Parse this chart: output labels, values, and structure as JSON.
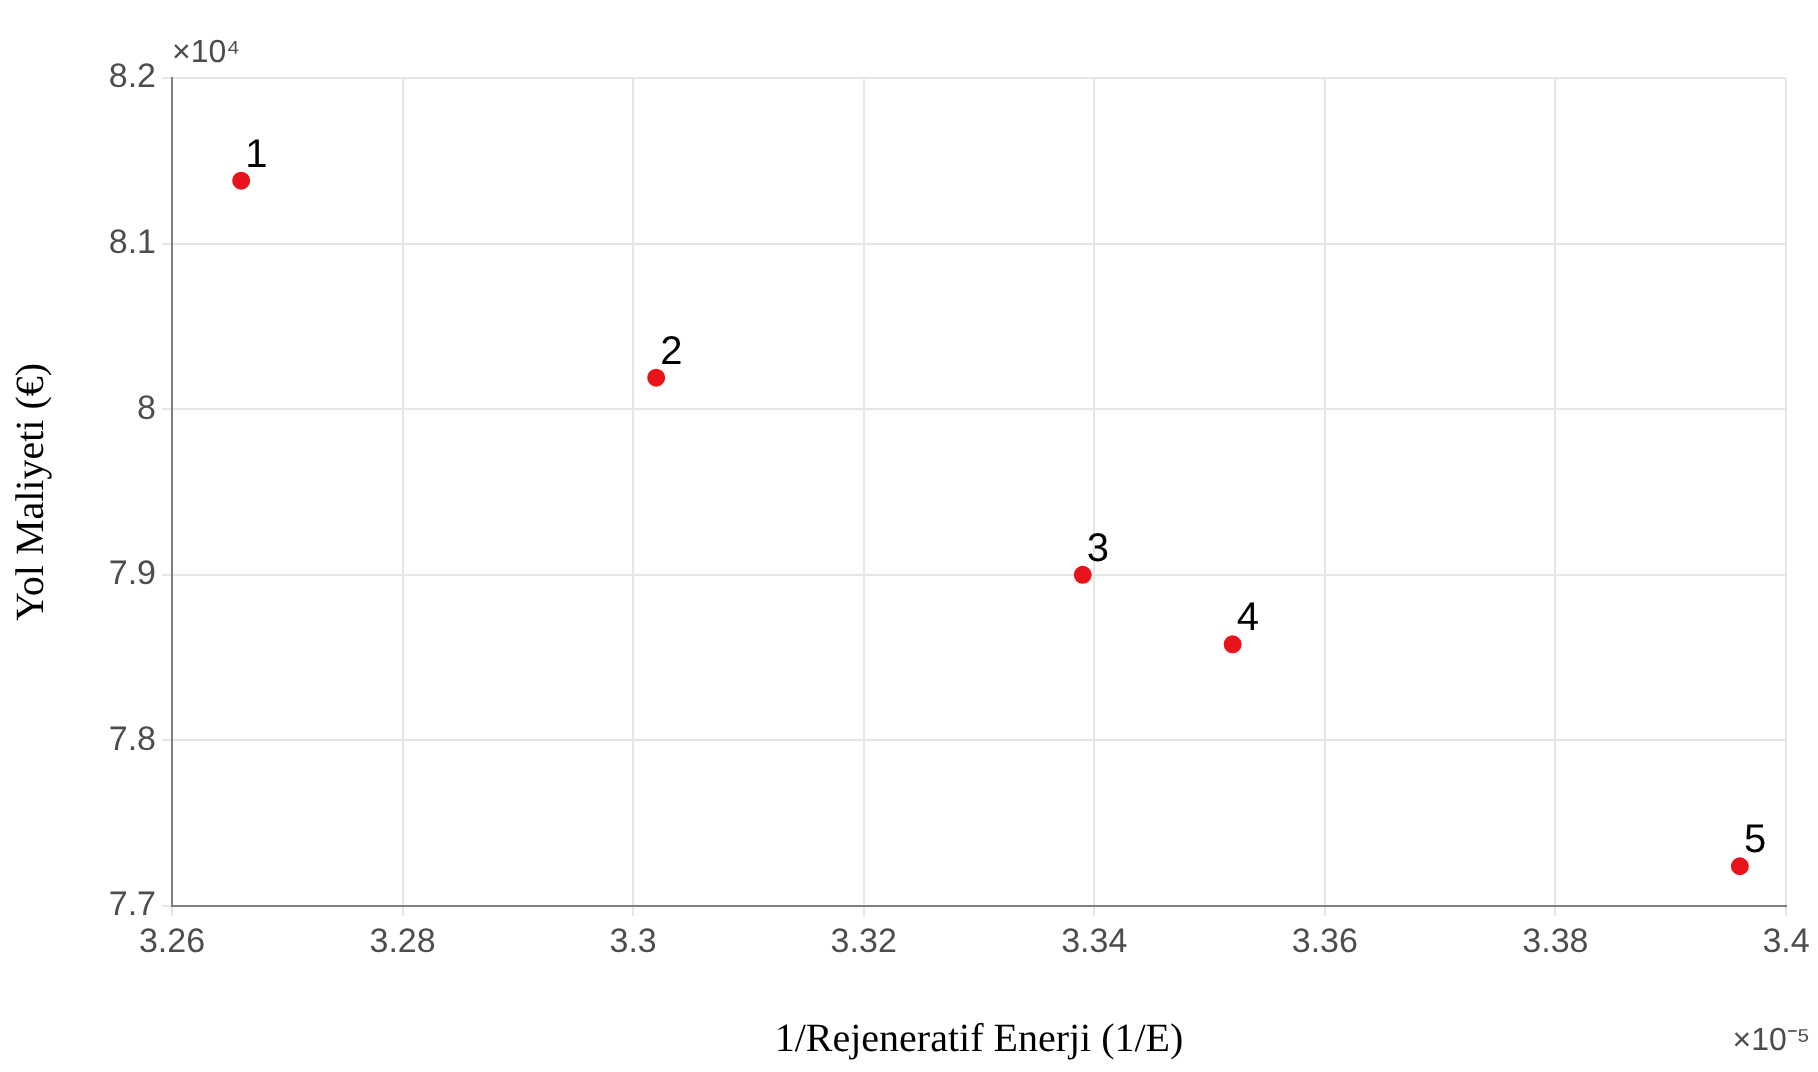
{
  "chart_data": {
    "type": "scatter",
    "xlabel": "1/Rejeneratif Enerji (1/E)",
    "ylabel": "Yol Maliyeti (€)",
    "series": [
      {
        "color": "#e8141b",
        "x": [
          3.266,
          3.302,
          3.339,
          3.352,
          3.396
        ],
        "values": [
          8.138,
          8.019,
          7.9,
          7.858,
          7.724
        ]
      }
    ],
    "xlim": [
      3.26,
      3.4
    ],
    "xticks": [
      3.26,
      3.28,
      3.3,
      3.32,
      3.34,
      3.36,
      3.38,
      3.4
    ],
    "ylim": [
      7.7,
      8.2
    ],
    "yticks": [
      7.7,
      7.8,
      7.9,
      8,
      8.1,
      8.2
    ],
    "annotations": [
      "×10⁴",
      "×10⁻⁵",
      {
        "text": "1",
        "x": 3.266,
        "y": 8.138
      },
      {
        "text": "2",
        "x": 3.302,
        "y": 8.019
      },
      {
        "text": "3",
        "x": 3.339,
        "y": 7.9
      },
      {
        "text": "4",
        "x": 3.352,
        "y": 7.858
      },
      {
        "text": "5",
        "x": 3.396,
        "y": 7.724
      }
    ],
    "grid": true,
    "marker": "circle"
  }
}
